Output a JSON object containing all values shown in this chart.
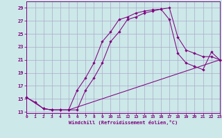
{
  "xlabel": "Windchill (Refroidissement éolien,°C)",
  "bg_color": "#cce8e8",
  "line_color": "#800080",
  "grid_color": "#aaaacc",
  "x_ticks": [
    0,
    1,
    2,
    3,
    4,
    5,
    6,
    7,
    8,
    9,
    10,
    11,
    12,
    13,
    14,
    15,
    16,
    17,
    18,
    19,
    20,
    21,
    22,
    23
  ],
  "y_ticks": [
    13,
    15,
    17,
    19,
    21,
    23,
    25,
    27,
    29
  ],
  "xlim": [
    0,
    23
  ],
  "ylim": [
    12.8,
    30.0
  ],
  "series1_x": [
    0,
    1,
    2,
    3,
    4,
    5,
    6,
    7,
    8,
    9,
    10,
    11,
    12,
    13,
    14,
    15,
    16,
    17,
    18,
    19,
    20,
    21,
    22,
    23
  ],
  "series1_y": [
    15.2,
    14.5,
    13.5,
    13.3,
    13.3,
    13.3,
    16.3,
    18.2,
    20.5,
    23.8,
    25.3,
    27.2,
    27.6,
    28.2,
    28.5,
    28.7,
    28.8,
    29.0,
    24.5,
    22.5,
    22.0,
    21.5,
    21.5,
    21.0
  ],
  "series2_x": [
    2,
    3,
    4,
    5,
    6,
    7,
    8,
    9,
    10,
    11,
    12,
    13,
    14,
    15,
    16,
    17,
    18,
    19,
    20,
    21,
    22,
    23
  ],
  "series2_y": [
    13.5,
    13.3,
    13.3,
    13.3,
    13.3,
    16.3,
    18.2,
    20.5,
    23.8,
    25.3,
    27.2,
    27.6,
    28.2,
    28.5,
    28.8,
    27.2,
    22.0,
    20.5,
    20.0,
    19.5,
    22.2,
    21.0
  ],
  "series3_x": [
    0,
    2,
    3,
    4,
    5,
    23
  ],
  "series3_y": [
    15.2,
    13.5,
    13.3,
    13.3,
    13.3,
    21.0
  ]
}
